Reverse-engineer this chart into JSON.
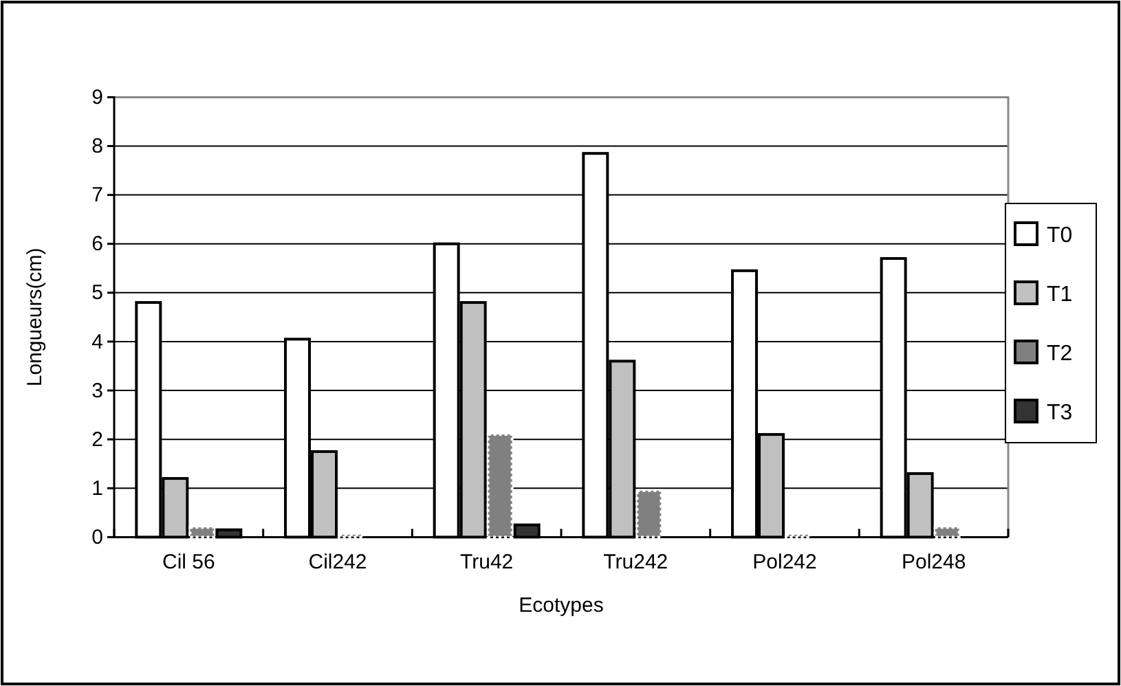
{
  "chart_data": {
    "type": "bar",
    "xlabel": "Ecotypes",
    "ylabel": "Longueurs(cm)",
    "categories": [
      "Cil 56",
      "Cil242",
      "Tru42",
      "Tru242",
      "Pol242",
      "Pol248"
    ],
    "series": [
      {
        "name": "T0",
        "color": "#ffffff",
        "values": [
          4.8,
          4.05,
          6.0,
          7.85,
          5.45,
          5.7
        ]
      },
      {
        "name": "T1",
        "color": "#c0c0c0",
        "values": [
          1.2,
          1.75,
          4.8,
          3.6,
          2.1,
          1.3
        ]
      },
      {
        "name": "T2",
        "color": "#808080",
        "values": [
          0.2,
          0.05,
          2.1,
          0.95,
          0.05,
          0.2
        ]
      },
      {
        "name": "T3",
        "color": "#333333",
        "values": [
          0.15,
          0,
          0.25,
          0,
          0,
          0
        ]
      }
    ],
    "ylim": [
      0,
      9
    ],
    "yticks": [
      0,
      1,
      2,
      3,
      4,
      5,
      6,
      7,
      8,
      9
    ],
    "grid": "y",
    "legend": "right"
  }
}
